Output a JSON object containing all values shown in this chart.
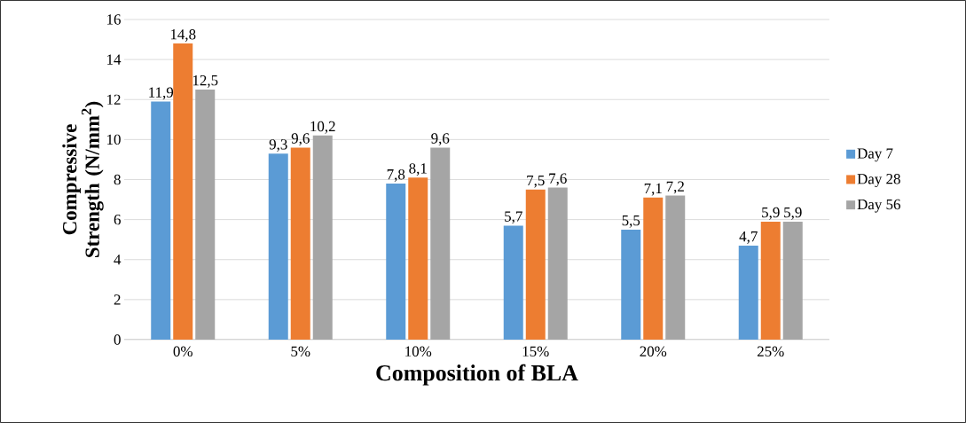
{
  "chart_data": {
    "type": "bar",
    "xlabel": "Composition of BLA",
    "ylabel": "Compressive Strength (N/mm$^{2}$)",
    "categories": [
      "0%",
      "5%",
      "10%",
      "15%",
      "20%",
      "25%"
    ],
    "series": [
      {
        "name": "Day 7",
        "color": "#5b9bd5",
        "values": [
          11.9,
          9.3,
          7.8,
          5.7,
          5.5,
          4.7
        ],
        "value_labels": [
          "11,9",
          "9,3",
          "7,8",
          "5,7",
          "5,5",
          "4,7"
        ]
      },
      {
        "name": "Day 28",
        "color": "#ed7d31",
        "values": [
          14.8,
          9.6,
          8.1,
          7.5,
          7.1,
          5.9
        ],
        "value_labels": [
          "14,8",
          "9,6",
          "8,1",
          "7,5",
          "7,1",
          "5,9"
        ]
      },
      {
        "name": "Day 56",
        "color": "#a5a5a5",
        "values": [
          12.5,
          10.2,
          9.6,
          7.6,
          7.2,
          5.9
        ],
        "value_labels": [
          "12,5",
          "10,2",
          "9,6",
          "7,6",
          "7,2",
          "5,9"
        ]
      }
    ],
    "ylim": [
      0,
      16
    ],
    "yticks": [
      0,
      2,
      4,
      6,
      8,
      10,
      12,
      14,
      16
    ],
    "grid": "y",
    "legend": "right"
  }
}
